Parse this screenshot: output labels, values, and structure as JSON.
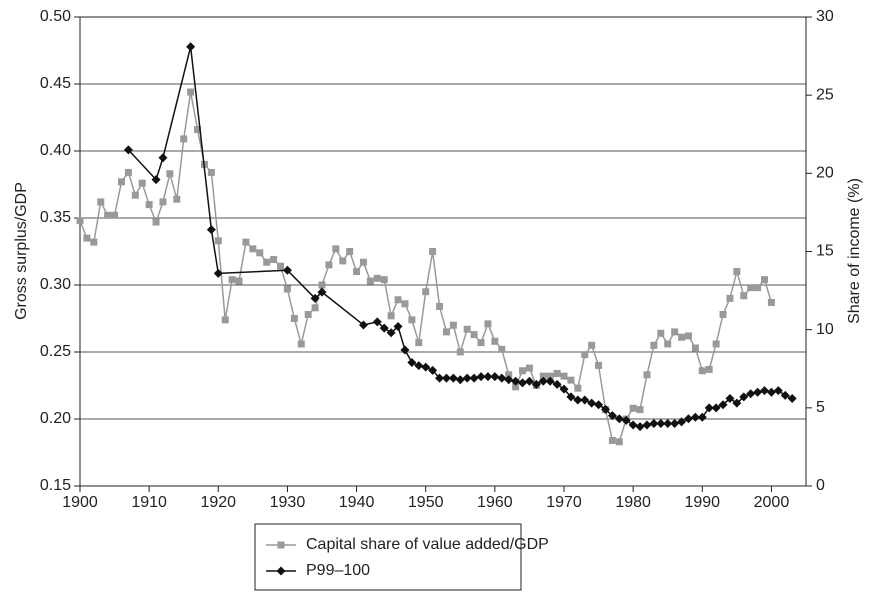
{
  "chart_data": {
    "type": "line",
    "y_label": "Gross surplus/GDP",
    "y2_label": "Share of income (%)",
    "xlim": [
      1900,
      2005
    ],
    "xticks": [
      1900,
      1910,
      1920,
      1930,
      1940,
      1950,
      1960,
      1970,
      1980,
      1990,
      2000
    ],
    "ylim": [
      0.15,
      0.5
    ],
    "yticks": [
      {
        "value": 0.15,
        "label": "0.15"
      },
      {
        "value": 0.2,
        "label": "0.20"
      },
      0.25,
      {
        "value": 0.3,
        "label": "0.30"
      },
      0.35,
      {
        "value": 0.4,
        "label": "0.40"
      },
      0.45,
      {
        "value": 0.5,
        "label": "0.50"
      }
    ],
    "y2lim": [
      0,
      30
    ],
    "y2ticks": [
      0,
      5,
      10,
      15,
      20,
      25,
      30
    ],
    "grid": true,
    "legend": "bottom",
    "series": [
      {
        "name": "Capital share of value added/GDP",
        "color": "#999999",
        "marker": "square",
        "x": [
          1900,
          1901,
          1902,
          1903,
          1904,
          1905,
          1906,
          1907,
          1908,
          1909,
          1910,
          1911,
          1912,
          1913,
          1914,
          1915,
          1916,
          1917,
          1918,
          1919,
          1920,
          1921,
          1922,
          1923,
          1924,
          1925,
          1926,
          1927,
          1928,
          1929,
          1930,
          1931,
          1932,
          1933,
          1934,
          1935,
          1936,
          1937,
          1938,
          1939,
          1940,
          1941,
          1942,
          1943,
          1944,
          1945,
          1946,
          1947,
          1948,
          1949,
          1950,
          1951,
          1952,
          1953,
          1954,
          1955,
          1956,
          1957,
          1958,
          1959,
          1960,
          1961,
          1962,
          1963,
          1964,
          1965,
          1966,
          1967,
          1968,
          1969,
          1970,
          1971,
          1972,
          1973,
          1974,
          1975,
          1976,
          1977,
          1978,
          1979,
          1980,
          1981,
          1982,
          1983,
          1984,
          1985,
          1986,
          1987,
          1988,
          1989,
          1990,
          1991,
          1992,
          1993,
          1994,
          1995,
          1996,
          1997,
          1998,
          1999,
          2000
        ],
        "values": [
          0.348,
          0.335,
          0.332,
          0.362,
          0.352,
          0.352,
          0.377,
          0.384,
          0.367,
          0.376,
          0.36,
          0.347,
          0.362,
          0.383,
          0.364,
          0.409,
          0.444,
          0.416,
          0.39,
          0.384,
          0.333,
          0.274,
          0.304,
          0.303,
          0.332,
          0.327,
          0.324,
          0.317,
          0.319,
          0.314,
          0.297,
          0.275,
          0.256,
          0.278,
          0.283,
          0.3,
          0.315,
          0.327,
          0.318,
          0.325,
          0.31,
          0.317,
          0.303,
          0.305,
          0.304,
          0.277,
          0.289,
          0.286,
          0.274,
          0.257,
          0.295,
          0.325,
          0.284,
          0.265,
          0.27,
          0.25,
          0.267,
          0.263,
          0.257,
          0.271,
          0.258,
          0.252,
          0.233,
          0.224,
          0.236,
          0.238,
          0.225,
          0.232,
          0.232,
          0.234,
          0.232,
          0.229,
          0.223,
          0.248,
          0.255,
          0.24,
          0.207,
          0.184,
          0.183,
          0.2,
          0.208,
          0.207,
          0.233,
          0.255,
          0.264,
          0.256,
          0.265,
          0.261,
          0.262,
          0.253,
          0.236,
          0.237,
          0.256,
          0.278,
          0.29,
          0.31,
          0.292,
          0.298,
          0.298,
          0.304,
          0.287
        ]
      },
      {
        "name": "P99–100",
        "color": "#111111",
        "marker": "diamond",
        "axis": "y2",
        "x": [
          1907,
          1911,
          1912,
          1916,
          1919,
          1920,
          1930,
          1934,
          1935,
          1941,
          1943,
          1944,
          1945,
          1946,
          1947,
          1948,
          1949,
          1950,
          1951,
          1952,
          1953,
          1954,
          1955,
          1956,
          1957,
          1958,
          1959,
          1960,
          1961,
          1962,
          1963,
          1964,
          1965,
          1966,
          1967,
          1968,
          1969,
          1970,
          1971,
          1972,
          1973,
          1974,
          1975,
          1976,
          1977,
          1978,
          1979,
          1980,
          1981,
          1982,
          1983,
          1984,
          1985,
          1986,
          1987,
          1988,
          1989,
          1990,
          1991,
          1992,
          1993,
          1994,
          1995,
          1996,
          1997,
          1998,
          1999,
          2000,
          2001,
          2002,
          2003
        ],
        "values": [
          21.5,
          19.6,
          21.0,
          28.1,
          16.4,
          13.6,
          13.8,
          12.0,
          12.4,
          10.3,
          10.5,
          10.1,
          9.8,
          10.2,
          8.7,
          7.9,
          7.7,
          7.6,
          7.4,
          6.9,
          6.9,
          6.9,
          6.8,
          6.9,
          6.9,
          7.0,
          7.0,
          7.0,
          6.9,
          6.8,
          6.7,
          6.6,
          6.7,
          6.5,
          6.7,
          6.7,
          6.5,
          6.2,
          5.7,
          5.5,
          5.5,
          5.3,
          5.2,
          4.9,
          4.5,
          4.3,
          4.2,
          3.9,
          3.8,
          3.9,
          4.0,
          4.0,
          4.0,
          4.0,
          4.1,
          4.3,
          4.4,
          4.4,
          5.0,
          5.0,
          5.2,
          5.6,
          5.3,
          5.7,
          5.9,
          6.0,
          6.1,
          6.0,
          6.1,
          5.8,
          5.6
        ]
      }
    ]
  }
}
